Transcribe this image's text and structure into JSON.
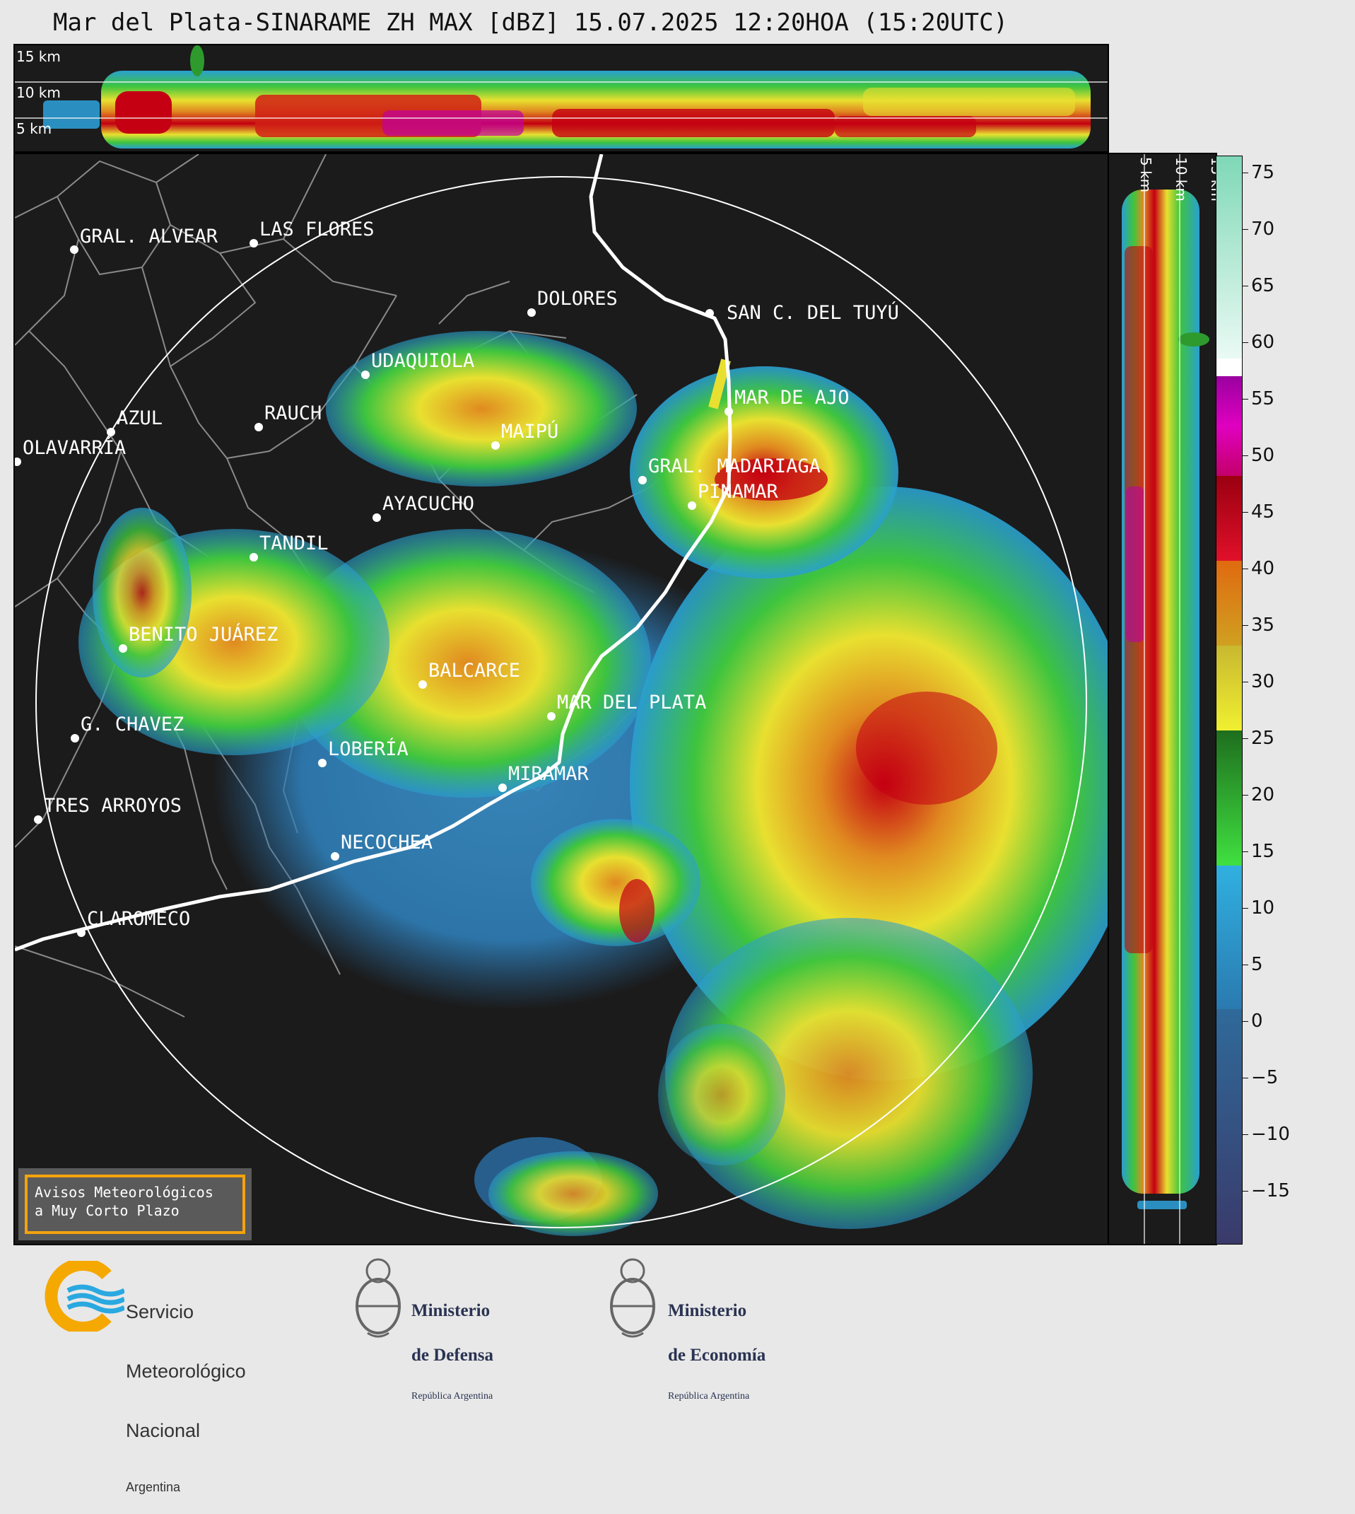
{
  "title": "Mar del Plata-SINARAME ZH MAX [dBZ] 15.07.2025 12:20HOA (15:20UTC)",
  "top_panel": {
    "height_labels": [
      "15 km",
      "10 km",
      "5 km"
    ]
  },
  "side_panel": {
    "height_labels": [
      "5 km",
      "10 km",
      "15 km"
    ]
  },
  "colorbar": {
    "unit": "dBZ",
    "ticks": [
      "75",
      "70",
      "65",
      "60",
      "55",
      "50",
      "45",
      "40",
      "35",
      "30",
      "25",
      "20",
      "15",
      "10",
      "5",
      "0",
      "−5",
      "−10",
      "−15"
    ],
    "colors": {
      "scale_top": "#7fd8b8",
      "white": "#ffffff",
      "magenta": "#c000a0",
      "red": "#c40012",
      "orange": "#e08a20",
      "yellow": "#e8e030",
      "green": "#2e9a2e",
      "blue": "#2a9fd0",
      "dark_blue": "#3a4a7a"
    }
  },
  "cities": [
    {
      "name": "GRAL. ALVEAR"
    },
    {
      "name": "LAS FLORES"
    },
    {
      "name": "DOLORES"
    },
    {
      "name": "SAN C. DEL TUYÚ"
    },
    {
      "name": "UDAQUIOLA"
    },
    {
      "name": "MAR DE AJO"
    },
    {
      "name": "AZUL"
    },
    {
      "name": "RAUCH"
    },
    {
      "name": "OLAVARRÍA"
    },
    {
      "name": "MAIPÚ"
    },
    {
      "name": "GRAL. MADARIAGA"
    },
    {
      "name": "PINAMAR"
    },
    {
      "name": "AYACUCHO"
    },
    {
      "name": "TANDIL"
    },
    {
      "name": "BENITO JUÁREZ"
    },
    {
      "name": "BALCARCE"
    },
    {
      "name": "MAR DEL PLATA"
    },
    {
      "name": "G. CHAVEZ"
    },
    {
      "name": "LOBERÍA"
    },
    {
      "name": "MIRAMAR"
    },
    {
      "name": "TRES ARROYOS"
    },
    {
      "name": "NECOCHEA"
    },
    {
      "name": "CLAROMECO"
    }
  ],
  "avisos_box": {
    "line1": "Avisos Meteorológicos",
    "line2": "a Muy Corto Plazo",
    "border_color": "#f4a20c"
  },
  "logos": {
    "smn": {
      "line1": "Servicio",
      "line2": "Meteorológico",
      "line3": "Nacional",
      "line4": "Argentina"
    },
    "defensa": {
      "line1": "Ministerio",
      "line2": "de Defensa",
      "line3": "República Argentina"
    },
    "economia": {
      "line1": "Ministerio",
      "line2": "de Economía",
      "line3": "República Argentina"
    }
  }
}
